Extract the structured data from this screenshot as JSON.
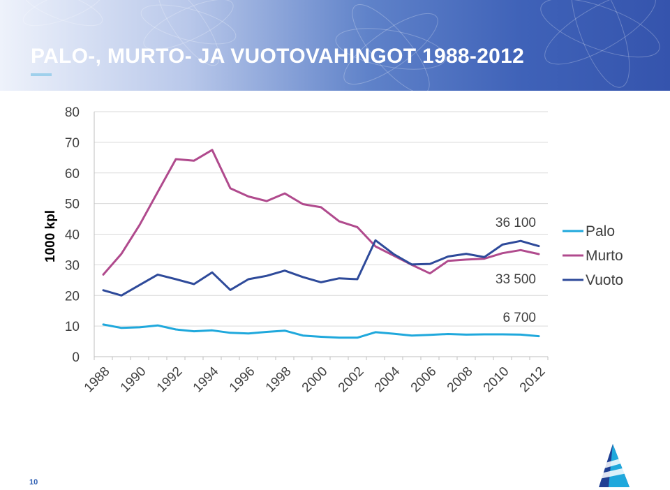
{
  "slide": {
    "title": "PALO-, MURTO- JA VUOTOVAHINGOT 1988-2012",
    "page_number": "10"
  },
  "chart_data": {
    "type": "line",
    "title": "",
    "ylabel": "1000 kpl",
    "xlabel": "",
    "ylim": [
      0,
      80
    ],
    "yticks": [
      0,
      10,
      20,
      30,
      40,
      50,
      60,
      70,
      80
    ],
    "x": [
      1988,
      1989,
      1990,
      1991,
      1992,
      1993,
      1994,
      1995,
      1996,
      1997,
      1998,
      1999,
      2000,
      2001,
      2002,
      2003,
      2004,
      2005,
      2006,
      2007,
      2008,
      2009,
      2010,
      2011,
      2012
    ],
    "xtick_labels": [
      "1988",
      "1990",
      "1992",
      "1994",
      "1996",
      "1998",
      "2000",
      "2002",
      "2004",
      "2006",
      "2008",
      "2010",
      "2012"
    ],
    "grid": true,
    "legend": "right",
    "series": [
      {
        "name": "Palo",
        "color": "#1fa8dc",
        "values": [
          10.5,
          9.4,
          9.6,
          10.2,
          8.9,
          8.3,
          8.6,
          7.8,
          7.6,
          8.1,
          8.5,
          6.9,
          6.5,
          6.2,
          6.2,
          8.0,
          7.5,
          6.9,
          7.1,
          7.4,
          7.2,
          7.3,
          7.3,
          7.2,
          6.7
        ]
      },
      {
        "name": "Murto",
        "color": "#b04a8d",
        "values": [
          26.8,
          33.6,
          43.0,
          53.8,
          64.5,
          64.0,
          67.5,
          55.0,
          52.3,
          50.8,
          53.3,
          49.8,
          48.8,
          44.2,
          42.3,
          36.0,
          33.0,
          30.0,
          27.2,
          31.3,
          31.7,
          32.0,
          33.8,
          34.8,
          33.5
        ]
      },
      {
        "name": "Vuoto",
        "color": "#2e4a9a",
        "values": [
          21.7,
          20.0,
          23.4,
          26.8,
          25.3,
          23.7,
          27.5,
          21.8,
          25.3,
          26.4,
          28.1,
          26.0,
          24.3,
          25.6,
          25.3,
          38.0,
          33.5,
          30.1,
          30.3,
          32.7,
          33.6,
          32.5,
          36.6,
          37.8,
          36.1
        ]
      }
    ],
    "annotations": [
      {
        "text": "36 100",
        "series": "Vuoto",
        "x": 2012
      },
      {
        "text": "33 500",
        "series": "Murto",
        "x": 2012
      },
      {
        "text": "6 700",
        "series": "Palo",
        "x": 2012
      }
    ]
  }
}
